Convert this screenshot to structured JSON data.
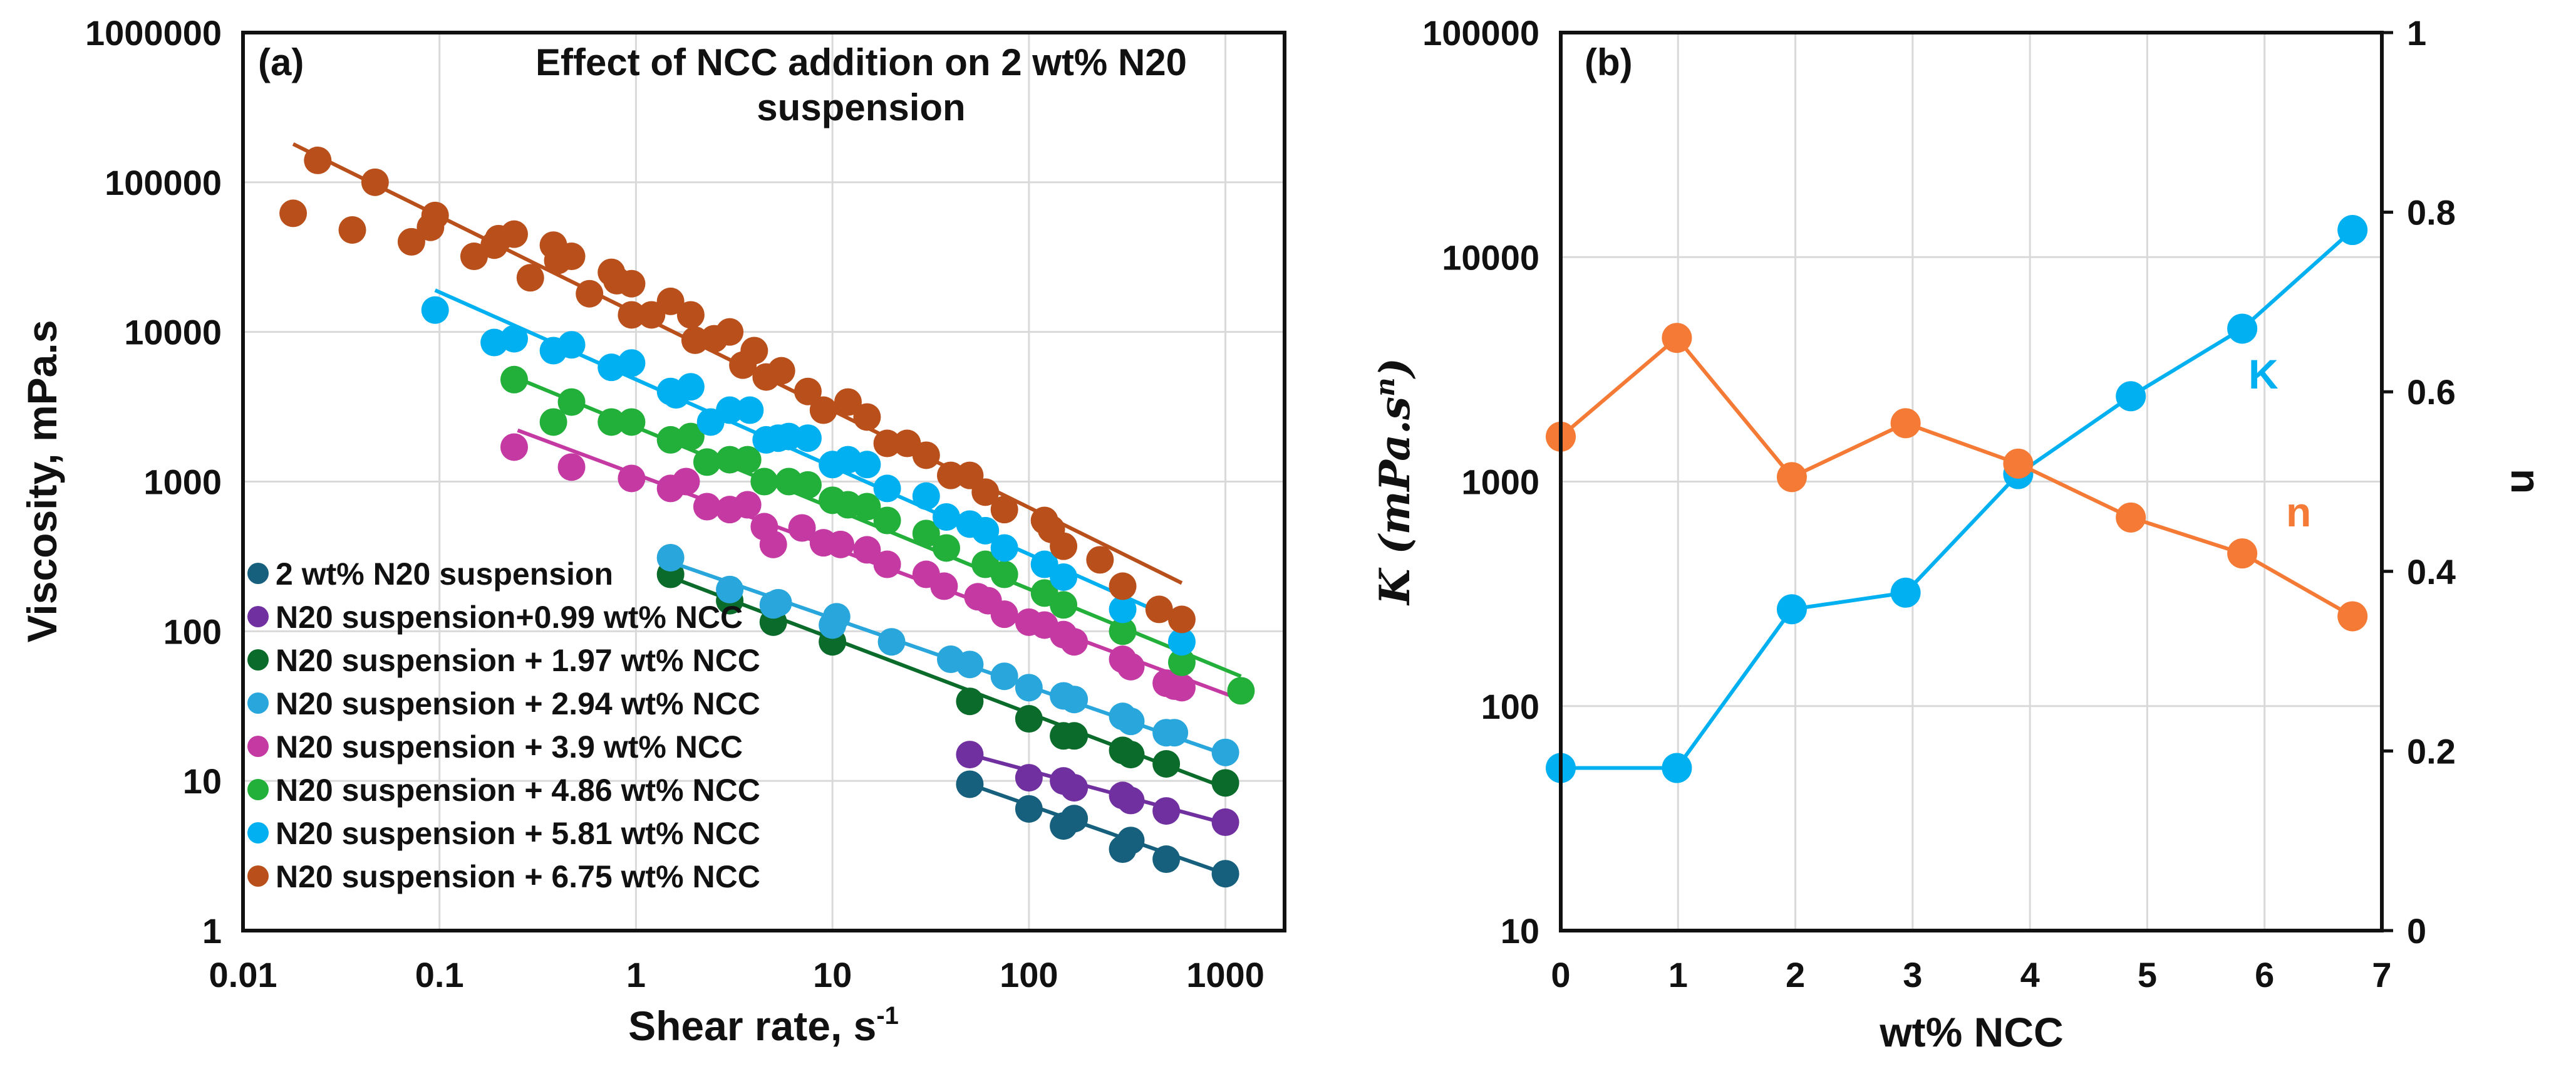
{
  "chart_data": [
    {
      "type": "scatter",
      "panel_label": "(a)",
      "title_lines": [
        "Effect of NCC addition on 2 wt% N20",
        "suspension"
      ],
      "xlabel": "Shear rate, s",
      "xlabel_superscript": "-1",
      "ylabel": "Viscosity, mPa.s",
      "xscale": "log",
      "yscale": "log",
      "xlim": [
        0.01,
        2000
      ],
      "ylim": [
        1,
        1000000
      ],
      "xticks": [
        "0.01",
        "0.1",
        "1",
        "10",
        "100",
        "1000"
      ],
      "xtick_values": [
        0.01,
        0.1,
        1,
        10,
        100,
        1000
      ],
      "yticks": [
        "1",
        "10",
        "100",
        "1000",
        "10000",
        "100000",
        "1000000"
      ],
      "ytick_values": [
        1,
        10,
        100,
        1000,
        10000,
        100000,
        1000000
      ],
      "grid": true,
      "legend_position": "bottom-left",
      "series": [
        {
          "name": "2 wt% N20 suspension",
          "color": "#17607d",
          "points": [
            [
              50,
              9.5
            ],
            [
              100,
              6.5
            ],
            [
              150,
              5
            ],
            [
              170,
              5.6
            ],
            [
              300,
              3.5
            ],
            [
              330,
              4
            ],
            [
              500,
              3
            ],
            [
              1000,
              2.4
            ]
          ],
          "fit": [
            [
              50,
              9.5
            ],
            [
              1000,
              2.4
            ]
          ]
        },
        {
          "name": "N20 suspension+0.99 wt% NCC",
          "color": "#7030a0",
          "points": [
            [
              50,
              15
            ],
            [
              100,
              10.5
            ],
            [
              150,
              10
            ],
            [
              170,
              9
            ],
            [
              300,
              8
            ],
            [
              330,
              7.4
            ],
            [
              500,
              6.3
            ],
            [
              1000,
              5.3
            ]
          ],
          "fit": [
            [
              50,
              15
            ],
            [
              1000,
              5.2
            ]
          ]
        },
        {
          "name": "N20 suspension + 1.97 wt% NCC",
          "color": "#0b6b2a",
          "points": [
            [
              1.5,
              240
            ],
            [
              3,
              160
            ],
            [
              5,
              115
            ],
            [
              10,
              85
            ],
            [
              50,
              34
            ],
            [
              100,
              26
            ],
            [
              150,
              20
            ],
            [
              170,
              20
            ],
            [
              300,
              16
            ],
            [
              330,
              15
            ],
            [
              500,
              13
            ],
            [
              1000,
              9.7
            ]
          ],
          "fit": [
            [
              1.5,
              230
            ],
            [
              1000,
              9
            ]
          ]
        },
        {
          "name": "N20 suspension + 2.94 wt% NCC",
          "color": "#29a6dc",
          "points": [
            [
              1.5,
              310
            ],
            [
              3,
              190
            ],
            [
              5,
              150
            ],
            [
              5.3,
              155
            ],
            [
              10,
              110
            ],
            [
              10.5,
              125
            ],
            [
              20,
              85
            ],
            [
              40,
              65
            ],
            [
              50,
              60
            ],
            [
              75,
              50
            ],
            [
              100,
              42
            ],
            [
              150,
              37
            ],
            [
              170,
              35
            ],
            [
              300,
              27
            ],
            [
              330,
              25
            ],
            [
              500,
              21
            ],
            [
              550,
              21
            ],
            [
              1000,
              15.5
            ]
          ],
          "fit": [
            [
              1.5,
              290
            ],
            [
              1000,
              15
            ]
          ]
        },
        {
          "name": "N20 suspension + 3.9 wt% NCC",
          "color": "#c43aa2",
          "points": [
            [
              0.24,
              1700
            ],
            [
              0.47,
              1250
            ],
            [
              0.95,
              1050
            ],
            [
              1.5,
              900
            ],
            [
              1.8,
              1000
            ],
            [
              2.3,
              680
            ],
            [
              3,
              650
            ],
            [
              3.7,
              700
            ],
            [
              4.5,
              500
            ],
            [
              5,
              380
            ],
            [
              7,
              490
            ],
            [
              9,
              390
            ],
            [
              11,
              380
            ],
            [
              15,
              350
            ],
            [
              19,
              280
            ],
            [
              30,
              240
            ],
            [
              37,
              200
            ],
            [
              55,
              170
            ],
            [
              62,
              160
            ],
            [
              75,
              130
            ],
            [
              100,
              115
            ],
            [
              120,
              110
            ],
            [
              150,
              95
            ],
            [
              170,
              85
            ],
            [
              300,
              65
            ],
            [
              330,
              58
            ],
            [
              500,
              45
            ],
            [
              550,
              43
            ],
            [
              600,
              42
            ]
          ],
          "fit": [
            [
              0.25,
              2200
            ],
            [
              1200,
              35
            ]
          ]
        },
        {
          "name": "N20 suspension + 4.86 wt% NCC",
          "color": "#22b03a",
          "points": [
            [
              0.24,
              4800
            ],
            [
              0.38,
              2500
            ],
            [
              0.47,
              3400
            ],
            [
              0.75,
              2500
            ],
            [
              0.95,
              2500
            ],
            [
              1.5,
              1900
            ],
            [
              1.9,
              2000
            ],
            [
              2.3,
              1350
            ],
            [
              3,
              1400
            ],
            [
              3.7,
              1400
            ],
            [
              4.5,
              1000
            ],
            [
              6,
              1000
            ],
            [
              7.5,
              950
            ],
            [
              10,
              750
            ],
            [
              12,
              700
            ],
            [
              15,
              680
            ],
            [
              19,
              550
            ],
            [
              30,
              450
            ],
            [
              38,
              360
            ],
            [
              60,
              280
            ],
            [
              75,
              240
            ],
            [
              120,
              180
            ],
            [
              150,
              150
            ],
            [
              300,
              100
            ],
            [
              600,
              62
            ],
            [
              1200,
              40
            ]
          ],
          "fit": [
            [
              0.24,
              5000
            ],
            [
              1200,
              50
            ]
          ]
        },
        {
          "name": "N20 suspension + 5.81 wt% NCC",
          "color": "#00b0f0",
          "points": [
            [
              0.095,
              14000
            ],
            [
              0.19,
              8500
            ],
            [
              0.24,
              9000
            ],
            [
              0.38,
              7500
            ],
            [
              0.47,
              8200
            ],
            [
              0.75,
              5800
            ],
            [
              0.95,
              6200
            ],
            [
              1.5,
              4000
            ],
            [
              1.6,
              3800
            ],
            [
              1.9,
              4300
            ],
            [
              2.4,
              2500
            ],
            [
              3,
              3000
            ],
            [
              3.8,
              3000
            ],
            [
              4.6,
              1900
            ],
            [
              5.3,
              1950
            ],
            [
              6,
              2000
            ],
            [
              7.5,
              1950
            ],
            [
              10,
              1300
            ],
            [
              12,
              1400
            ],
            [
              15,
              1300
            ],
            [
              19,
              900
            ],
            [
              30,
              800
            ],
            [
              38,
              580
            ],
            [
              50,
              520
            ],
            [
              60,
              470
            ],
            [
              75,
              360
            ],
            [
              120,
              280
            ],
            [
              150,
              230
            ],
            [
              300,
              140
            ],
            [
              600,
              85
            ]
          ],
          "fit": [
            [
              0.095,
              19000
            ],
            [
              600,
              115
            ]
          ]
        },
        {
          "name": "N20 suspension + 6.75 wt% NCC",
          "color": "#b9501c",
          "points": [
            [
              0.018,
              62000
            ],
            [
              0.024,
              140000
            ],
            [
              0.036,
              48000
            ],
            [
              0.047,
              100000
            ],
            [
              0.072,
              40000
            ],
            [
              0.09,
              50000
            ],
            [
              0.095,
              60000
            ],
            [
              0.15,
              32000
            ],
            [
              0.19,
              38000
            ],
            [
              0.2,
              42000
            ],
            [
              0.24,
              45000
            ],
            [
              0.29,
              23000
            ],
            [
              0.38,
              38000
            ],
            [
              0.4,
              30000
            ],
            [
              0.47,
              32000
            ],
            [
              0.58,
              18000
            ],
            [
              0.75,
              25000
            ],
            [
              0.8,
              22000
            ],
            [
              0.95,
              21000
            ],
            [
              0.95,
              13000
            ],
            [
              1.2,
              13000
            ],
            [
              1.5,
              16000
            ],
            [
              1.9,
              13000
            ],
            [
              2,
              8800
            ],
            [
              2.5,
              9000
            ],
            [
              3,
              10000
            ],
            [
              3.5,
              6000
            ],
            [
              4,
              7500
            ],
            [
              4.6,
              5000
            ],
            [
              5.5,
              5500
            ],
            [
              7.5,
              4000
            ],
            [
              9,
              3000
            ],
            [
              12,
              3400
            ],
            [
              15,
              2700
            ],
            [
              19,
              1800
            ],
            [
              24,
              1800
            ],
            [
              30,
              1500
            ],
            [
              40,
              1100
            ],
            [
              50,
              1100
            ],
            [
              60,
              850
            ],
            [
              75,
              650
            ],
            [
              120,
              550
            ],
            [
              130,
              480
            ],
            [
              150,
              370
            ],
            [
              230,
              300
            ],
            [
              300,
              200
            ],
            [
              460,
              140
            ],
            [
              600,
              120
            ]
          ],
          "fit": [
            [
              0.018,
              180000
            ],
            [
              600,
              210
            ]
          ]
        }
      ]
    },
    {
      "type": "line",
      "panel_label": "(b)",
      "xlabel": "wt% NCC",
      "ylabel_left": "K (mPa.s",
      "ylabel_left_superscript": "n",
      "ylabel_left_close": ")",
      "ylabel_right": "n",
      "xlim": [
        0,
        7
      ],
      "ylim_left": [
        10,
        100000
      ],
      "ylim_right": [
        0,
        1
      ],
      "xticks": [
        "0",
        "1",
        "2",
        "3",
        "4",
        "5",
        "6",
        "7"
      ],
      "yticks_left": [
        "10",
        "100",
        "1000",
        "10000",
        "100000"
      ],
      "yticks_right": [
        "0",
        "0.2",
        "0.4",
        "0.6",
        "0.8",
        "1"
      ],
      "grid": true,
      "x": [
        0,
        0.99,
        1.97,
        2.94,
        3.9,
        4.86,
        5.81,
        6.75
      ],
      "series": [
        {
          "name": "K",
          "axis": "left",
          "color": "#00b0f0",
          "values": [
            53,
            53,
            270,
            320,
            1080,
            2400,
            4800,
            13200
          ]
        },
        {
          "name": "n",
          "axis": "right",
          "color": "#f47a35",
          "values": [
            0.55,
            0.66,
            0.505,
            0.565,
            0.52,
            0.46,
            0.42,
            0.35
          ]
        }
      ]
    }
  ]
}
